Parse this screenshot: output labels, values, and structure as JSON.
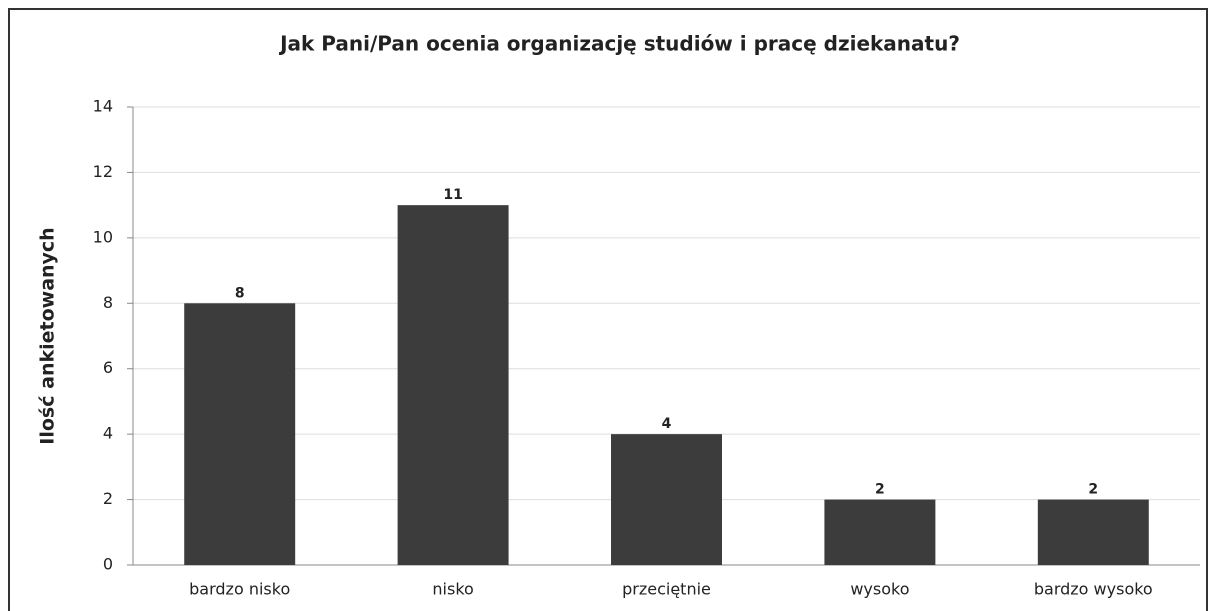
{
  "chart_data": {
    "type": "bar",
    "title": "Jak Pani/Pan ocenia organizację studiów i pracę dziekanatu?",
    "y_label": "Ilość ankietowanych",
    "categories": [
      "bardzo nisko",
      "nisko",
      "przeciętnie",
      "wysoko",
      "bardzo wysoko"
    ],
    "values": [
      8,
      11,
      4,
      2,
      2
    ],
    "color": "#3c3c3c",
    "ylim": [
      0,
      14
    ],
    "yticks": [
      0,
      2,
      4,
      6,
      8,
      10,
      12,
      14
    ],
    "grid": true
  }
}
